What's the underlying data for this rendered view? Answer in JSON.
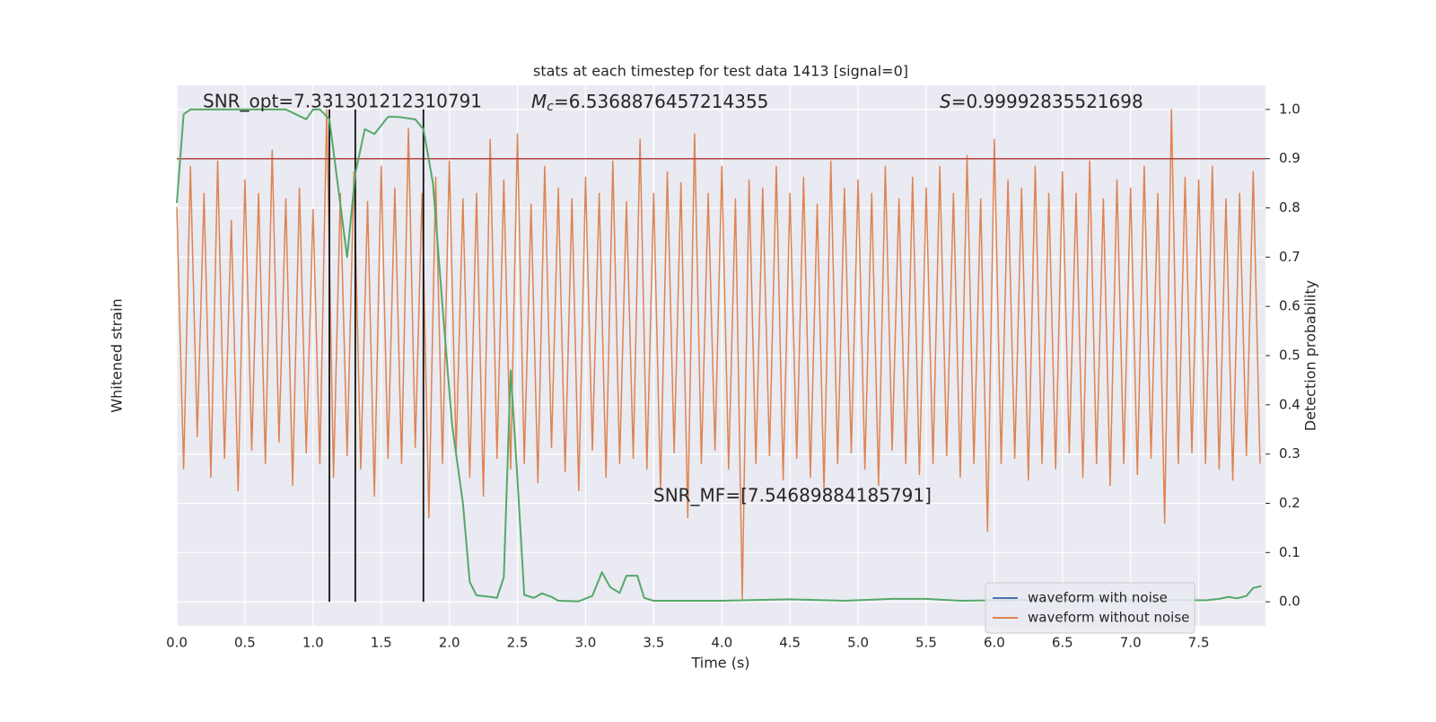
{
  "chart_data": {
    "type": "line",
    "title": "stats at each timestep for test data 1413 [signal=0]",
    "xlabel": "Time (s)",
    "ylabel": "Whitened strain",
    "y2label": "Detection probability",
    "xlim": [
      0,
      7.99
    ],
    "ylim": [
      -1.1,
      0.9
    ],
    "y2lim": [
      -0.049,
      1.049
    ],
    "xticks": [
      {
        "value": 0,
        "label": "0.0"
      },
      {
        "value": 0.5,
        "label": "0.5"
      },
      {
        "value": 1,
        "label": "1.0"
      },
      {
        "value": 1.5,
        "label": "1.5"
      },
      {
        "value": 2,
        "label": "2.0"
      },
      {
        "value": 2.5,
        "label": "2.5"
      },
      {
        "value": 3,
        "label": "3.0"
      },
      {
        "value": 3.5,
        "label": "3.5"
      },
      {
        "value": 4,
        "label": "4.0"
      },
      {
        "value": 4.5,
        "label": "4.5"
      },
      {
        "value": 5,
        "label": "5.0"
      },
      {
        "value": 5.5,
        "label": "5.5"
      },
      {
        "value": 6,
        "label": "6.0"
      },
      {
        "value": 6.5,
        "label": "6.5"
      },
      {
        "value": 7,
        "label": "7.0"
      },
      {
        "value": 7.5,
        "label": "7.5"
      }
    ],
    "y2ticks": [
      {
        "value": 0,
        "label": "0.0"
      },
      {
        "value": 0.1,
        "label": "0.1"
      },
      {
        "value": 0.2,
        "label": "0.2"
      },
      {
        "value": 0.3,
        "label": "0.3"
      },
      {
        "value": 0.4,
        "label": "0.4"
      },
      {
        "value": 0.5,
        "label": "0.5"
      },
      {
        "value": 0.6,
        "label": "0.6"
      },
      {
        "value": 0.7,
        "label": "0.7"
      },
      {
        "value": 0.8,
        "label": "0.8"
      },
      {
        "value": 0.9,
        "label": "0.9"
      },
      {
        "value": 1,
        "label": "1.0"
      }
    ],
    "grid": true,
    "legend": "lower right",
    "threshold": 0.9,
    "threshold_color": "#b5443f",
    "markers_x": [
      1.12,
      1.31,
      1.81
    ],
    "markers_color": "#111111",
    "annotations": {
      "snr_opt": "SNR_opt=7.331301212310791",
      "mc": {
        "symbol": "M",
        "subscript": "c",
        "value": "=6.5368876457214355"
      },
      "s": {
        "symbol": "S",
        "value": "=0.99992835521698"
      },
      "snr_mf": "SNR_MF=[7.54689884185791]"
    },
    "series": [
      {
        "name": "waveform with noise",
        "color": "#4c72b0",
        "axis": "y",
        "x": [],
        "values": []
      },
      {
        "name": "waveform without noise",
        "color": "#dd8452",
        "axis": "y",
        "x": [
          0,
          0.05,
          0.1,
          0.15,
          0.2,
          0.25,
          0.3,
          0.35,
          0.4,
          0.45,
          0.5,
          0.55,
          0.6,
          0.65,
          0.7,
          0.75,
          0.8,
          0.85,
          0.9,
          0.95,
          1,
          1.05,
          1.1,
          1.15,
          1.2,
          1.25,
          1.3,
          1.35,
          1.4,
          1.45,
          1.5,
          1.55,
          1.6,
          1.65,
          1.7,
          1.75,
          1.8,
          1.85,
          1.9,
          1.95,
          2,
          2.05,
          2.1,
          2.15,
          2.2,
          2.25,
          2.3,
          2.35,
          2.4,
          2.45,
          2.5,
          2.55,
          2.6,
          2.65,
          2.7,
          2.75,
          2.8,
          2.85,
          2.9,
          2.95,
          3,
          3.05,
          3.1,
          3.15,
          3.2,
          3.25,
          3.3,
          3.35,
          3.4,
          3.45,
          3.5,
          3.55,
          3.6,
          3.65,
          3.7,
          3.75,
          3.8,
          3.85,
          3.9,
          3.95,
          4,
          4.05,
          4.1,
          4.15,
          4.2,
          4.25,
          4.3,
          4.35,
          4.4,
          4.45,
          4.5,
          4.55,
          4.6,
          4.65,
          4.7,
          4.75,
          4.8,
          4.85,
          4.9,
          4.95,
          5,
          5.05,
          5.1,
          5.15,
          5.2,
          5.25,
          5.3,
          5.35,
          5.4,
          5.45,
          5.5,
          5.55,
          5.6,
          5.65,
          5.7,
          5.75,
          5.8,
          5.85,
          5.9,
          5.95,
          6,
          6.05,
          6.1,
          6.15,
          6.2,
          6.25,
          6.3,
          6.35,
          6.4,
          6.45,
          6.5,
          6.55,
          6.6,
          6.65,
          6.7,
          6.75,
          6.8,
          6.85,
          6.9,
          6.95,
          7,
          7.05,
          7.1,
          7.15,
          7.2,
          7.25,
          7.3,
          7.35,
          7.4,
          7.45,
          7.5,
          7.55,
          7.6,
          7.65,
          7.7,
          7.75,
          7.8,
          7.85,
          7.9,
          7.95
        ],
        "values": [
          0.45,
          -0.52,
          0.6,
          -0.4,
          0.5,
          -0.55,
          0.62,
          -0.48,
          0.4,
          -0.6,
          0.55,
          -0.45,
          0.5,
          -0.5,
          0.66,
          -0.42,
          0.48,
          -0.58,
          0.52,
          -0.46,
          0.44,
          -0.5,
          0.81,
          -0.55,
          0.5,
          -0.47,
          0.58,
          -0.52,
          0.47,
          -0.62,
          0.6,
          -0.48,
          0.52,
          -0.5,
          0.74,
          -0.44,
          0.5,
          -0.7,
          0.56,
          -0.5,
          0.62,
          -0.46,
          0.48,
          -0.55,
          0.5,
          -0.62,
          0.7,
          -0.48,
          0.55,
          -0.52,
          0.72,
          -0.5,
          0.46,
          -0.57,
          0.6,
          -0.44,
          0.52,
          -0.53,
          0.48,
          -0.6,
          0.56,
          -0.45,
          0.5,
          -0.55,
          0.62,
          -0.5,
          0.47,
          -0.48,
          0.7,
          -0.52,
          0.5,
          -0.6,
          0.58,
          -0.46,
          0.54,
          -0.7,
          0.72,
          -0.5,
          0.5,
          -0.45,
          0.6,
          -0.52,
          0.48,
          -1.0,
          0.55,
          -0.5,
          0.52,
          -0.47,
          0.6,
          -0.56,
          0.5,
          -0.48,
          0.56,
          -0.55,
          0.46,
          -0.6,
          0.62,
          -0.5,
          0.52,
          -0.46,
          0.55,
          -0.52,
          0.5,
          -0.58,
          0.6,
          -0.45,
          0.48,
          -0.5,
          0.56,
          -0.54,
          0.52,
          -0.5,
          0.6,
          -0.47,
          0.5,
          -0.55,
          0.64,
          -0.5,
          0.48,
          -0.75,
          0.7,
          -0.5,
          0.55,
          -0.48,
          0.52,
          -0.56,
          0.6,
          -0.5,
          0.5,
          -0.52,
          0.58,
          -0.46,
          0.5,
          -0.55,
          0.62,
          -0.5,
          0.48,
          -0.58,
          0.55,
          -0.5,
          0.52,
          -0.54,
          0.6,
          -0.48,
          0.5,
          -0.72,
          0.81,
          -0.5,
          0.56,
          -0.46,
          0.55,
          -0.5,
          0.6,
          -0.52,
          0.48,
          -0.56,
          0.5,
          -0.47,
          0.58,
          -0.5
        ]
      },
      {
        "name": "detection probability",
        "color": "#55a868",
        "axis": "y2",
        "legend": false,
        "x": [
          0,
          0.05,
          0.1,
          0.55,
          0.8,
          0.95,
          1,
          1.05,
          1.12,
          1.25,
          1.31,
          1.38,
          1.45,
          1.55,
          1.62,
          1.75,
          1.81,
          1.88,
          1.95,
          2.02,
          2.1,
          2.15,
          2.2,
          2.3,
          2.35,
          2.4,
          2.45,
          2.5,
          2.55,
          2.62,
          2.68,
          2.75,
          2.8,
          2.95,
          3.05,
          3.12,
          3.18,
          3.25,
          3.3,
          3.38,
          3.43,
          3.5,
          4,
          4.3,
          4.5,
          4.9,
          5.25,
          5.5,
          5.75,
          6,
          6.5,
          7,
          7.55,
          7.65,
          7.72,
          7.78,
          7.85,
          7.9,
          7.96
        ],
        "values": [
          0.81,
          0.99,
          1.0,
          1.0,
          1.0,
          0.98,
          1.0,
          1.0,
          0.98,
          0.7,
          0.87,
          0.96,
          0.95,
          0.985,
          0.985,
          0.98,
          0.96,
          0.85,
          0.6,
          0.36,
          0.2,
          0.04,
          0.013,
          0.01,
          0.008,
          0.05,
          0.47,
          0.25,
          0.014,
          0.008,
          0.017,
          0.01,
          0.002,
          0.001,
          0.012,
          0.06,
          0.03,
          0.018,
          0.053,
          0.053,
          0.008,
          0.002,
          0.002,
          0.004,
          0.005,
          0.002,
          0.006,
          0.006,
          0.002,
          0.003,
          0.004,
          0.004,
          0.003,
          0.006,
          0.01,
          0.007,
          0.012,
          0.028,
          0.032
        ]
      }
    ]
  }
}
